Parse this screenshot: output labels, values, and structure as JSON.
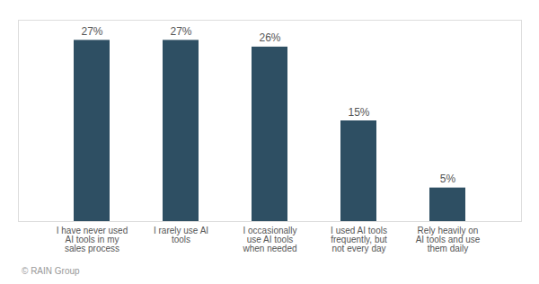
{
  "chart_data": {
    "type": "bar",
    "categories": [
      "I have never used\nAI tools in my\nsales process",
      "I rarely use AI\ntools",
      "I occasionally\nuse AI tools\nwhen needed",
      "I used AI tools\nfrequently, but\nnot every day",
      "Rely heavily on\nAI tools and use\nthem daily"
    ],
    "values": [
      27,
      27,
      26,
      15,
      5
    ],
    "value_labels": [
      "27%",
      "27%",
      "26%",
      "15%",
      "5%"
    ],
    "data_labels": true,
    "color": "#2e4f63",
    "ylim": [
      0,
      30
    ],
    "tick_labels": "x",
    "grid": false,
    "annotations": [
      "© RAIN Group"
    ]
  }
}
